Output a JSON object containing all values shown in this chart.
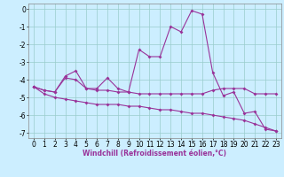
{
  "xlabel": "Windchill (Refroidissement éolien,°C)",
  "bg_color": "#cceeff",
  "line_color": "#993399",
  "grid_color": "#99cccc",
  "xlim": [
    -0.5,
    23.5
  ],
  "ylim": [
    -7.3,
    0.3
  ],
  "yticks": [
    0,
    -1,
    -2,
    -3,
    -4,
    -5,
    -6,
    -7
  ],
  "xticks": [
    0,
    1,
    2,
    3,
    4,
    5,
    6,
    7,
    8,
    9,
    10,
    11,
    12,
    13,
    14,
    15,
    16,
    17,
    18,
    19,
    20,
    21,
    22,
    23
  ],
  "line1_y": [
    -4.4,
    -4.6,
    -4.7,
    -3.9,
    -4.0,
    -4.5,
    -4.6,
    -4.6,
    -4.7,
    -4.7,
    -4.8,
    -4.8,
    -4.8,
    -4.8,
    -4.8,
    -4.8,
    -4.8,
    -4.6,
    -4.5,
    -4.5,
    -4.5,
    -4.8,
    -4.8,
    -4.8
  ],
  "line2_y": [
    -4.4,
    -4.6,
    -4.7,
    -3.8,
    -3.5,
    -4.5,
    -4.5,
    -3.9,
    -4.5,
    -4.7,
    -2.3,
    -2.7,
    -2.7,
    -1.0,
    -1.3,
    -0.1,
    -0.3,
    -3.6,
    -4.9,
    -4.7,
    -5.9,
    -5.8,
    -6.8,
    -6.9
  ],
  "line3_y": [
    -4.4,
    -4.8,
    -5.0,
    -5.1,
    -5.2,
    -5.3,
    -5.4,
    -5.4,
    -5.4,
    -5.5,
    -5.5,
    -5.6,
    -5.7,
    -5.7,
    -5.8,
    -5.9,
    -5.9,
    -6.0,
    -6.1,
    -6.2,
    -6.3,
    -6.5,
    -6.7,
    -6.9
  ],
  "tick_fontsize": 5.5,
  "xlabel_fontsize": 5.5,
  "marker_size": 2.0,
  "line_width": 0.8
}
